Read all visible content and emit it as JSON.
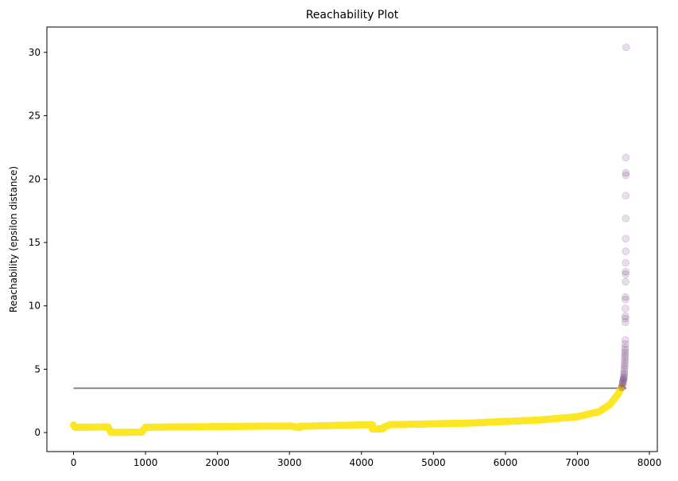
{
  "chart_data": {
    "type": "scatter",
    "title": "Reachability Plot",
    "xlabel": "",
    "ylabel": "Reachability (epsilon distance)",
    "xlim": [
      -370,
      8110
    ],
    "ylim": [
      -1.5,
      32
    ],
    "xticks": [
      0,
      1000,
      2000,
      3000,
      4000,
      5000,
      6000,
      7000,
      8000
    ],
    "yticks": [
      0,
      5,
      10,
      15,
      20,
      25,
      30
    ],
    "grid": false,
    "threshold_line": {
      "y": 3.5,
      "x_range": [
        0,
        7680
      ],
      "color": "#808080"
    },
    "colors": {
      "cluster": "#fde725",
      "noise": "#440154"
    },
    "series": [
      {
        "role": "cluster",
        "segments": [
          {
            "x": [
              0,
              20
            ],
            "y": [
              0.6,
              0.45
            ]
          },
          {
            "x": [
              20,
              480
            ],
            "y": [
              0.42,
              0.44
            ]
          },
          {
            "x": [
              480,
              520
            ],
            "y": [
              0.44,
              0.05
            ]
          },
          {
            "x": [
              520,
              950
            ],
            "y": [
              0.02,
              0.03
            ]
          },
          {
            "x": [
              950,
              1000
            ],
            "y": [
              0.1,
              0.4
            ]
          },
          {
            "x": [
              1000,
              3000
            ],
            "y": [
              0.42,
              0.52
            ]
          },
          {
            "x": [
              3000,
              3150
            ],
            "y": [
              0.52,
              0.4
            ]
          },
          {
            "x": [
              3150,
              4150
            ],
            "y": [
              0.5,
              0.62
            ]
          },
          {
            "x": [
              4150,
              4300
            ],
            "y": [
              0.28,
              0.3
            ]
          },
          {
            "x": [
              4300,
              4400
            ],
            "y": [
              0.4,
              0.62
            ]
          },
          {
            "x": [
              4400,
              5500
            ],
            "y": [
              0.62,
              0.75
            ]
          },
          {
            "x": [
              5500,
              6500
            ],
            "y": [
              0.75,
              1.0
            ]
          },
          {
            "x": [
              6500,
              7000
            ],
            "y": [
              1.0,
              1.25
            ]
          },
          {
            "x": [
              7000,
              7300
            ],
            "y": [
              1.25,
              1.65
            ]
          },
          {
            "x": [
              7300,
              7450
            ],
            "y": [
              1.65,
              2.2
            ]
          },
          {
            "x": [
              7450,
              7560
            ],
            "y": [
              2.2,
              3.0
            ]
          },
          {
            "x": [
              7560,
              7610
            ],
            "y": [
              3.0,
              3.5
            ]
          }
        ]
      },
      {
        "role": "noise",
        "points": [
          [
            7615,
            3.55
          ],
          [
            7620,
            3.65
          ],
          [
            7625,
            3.8
          ],
          [
            7630,
            3.9
          ],
          [
            7633,
            4.0
          ],
          [
            7636,
            4.1
          ],
          [
            7640,
            4.2
          ],
          [
            7643,
            4.3
          ],
          [
            7646,
            4.4
          ],
          [
            7648,
            4.55
          ],
          [
            7650,
            4.7
          ],
          [
            7652,
            4.9
          ],
          [
            7654,
            5.1
          ],
          [
            7656,
            5.3
          ],
          [
            7658,
            5.5
          ],
          [
            7659,
            5.7
          ],
          [
            7660,
            5.9
          ],
          [
            7661,
            6.1
          ],
          [
            7662,
            6.3
          ],
          [
            7663,
            6.5
          ],
          [
            7664,
            6.7
          ],
          [
            7665,
            7.0
          ],
          [
            7665,
            7.3
          ],
          [
            7666,
            8.7
          ],
          [
            7666,
            9.0
          ],
          [
            7667,
            9.2
          ],
          [
            7667,
            9.8
          ],
          [
            7668,
            10.5
          ],
          [
            7668,
            10.7
          ],
          [
            7669,
            11.9
          ],
          [
            7669,
            12.5
          ],
          [
            7670,
            12.7
          ],
          [
            7670,
            13.4
          ],
          [
            7671,
            14.3
          ],
          [
            7671,
            15.3
          ],
          [
            7672,
            16.9
          ],
          [
            7672,
            18.7
          ],
          [
            7673,
            20.3
          ],
          [
            7673,
            20.5
          ],
          [
            7674,
            21.7
          ],
          [
            7676,
            30.4
          ]
        ]
      }
    ]
  }
}
